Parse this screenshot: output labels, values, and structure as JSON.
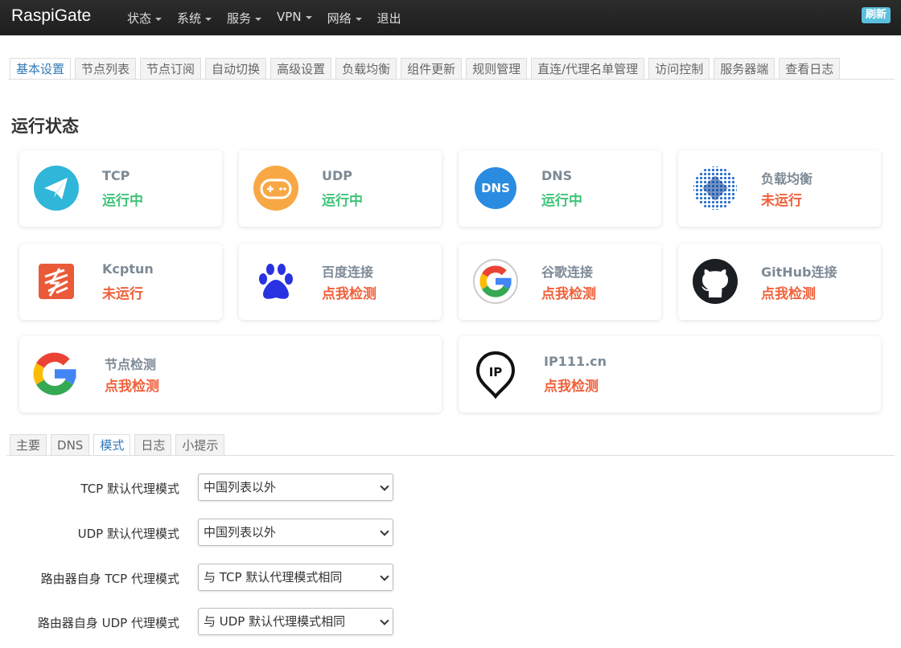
{
  "navbar": {
    "brand": "RaspiGate",
    "menu": [
      "状态",
      "系统",
      "服务",
      "VPN",
      "网络",
      "退出"
    ],
    "refresh": "刷新"
  },
  "tabs": [
    "基本设置",
    "节点列表",
    "节点订阅",
    "自动切换",
    "高级设置",
    "负载均衡",
    "组件更新",
    "规则管理",
    "直连/代理名单管理",
    "访问控制",
    "服务器端",
    "查看日志"
  ],
  "section_title": "运行状态",
  "cards": [
    {
      "name": "TCP",
      "status": "运行中"
    },
    {
      "name": "UDP",
      "status": "运行中"
    },
    {
      "name": "DNS",
      "status": "运行中",
      "icon_text": "DNS"
    },
    {
      "name": "负载均衡",
      "status": "未运行"
    },
    {
      "name": "Kcptun",
      "status": "未运行"
    },
    {
      "name": "百度连接",
      "status": "点我检测"
    },
    {
      "name": "谷歌连接",
      "status": "点我检测"
    },
    {
      "name": "GitHub连接",
      "status": "点我检测"
    },
    {
      "name": "节点检测",
      "status": "点我检测"
    },
    {
      "name": "IP111.cn",
      "status": "点我检测",
      "icon_text": "IP"
    }
  ],
  "subtabs": [
    "主要",
    "DNS",
    "模式",
    "日志",
    "小提示"
  ],
  "form": [
    {
      "label": "TCP 默认代理模式",
      "value": "中国列表以外"
    },
    {
      "label": "UDP 默认代理模式",
      "value": "中国列表以外"
    },
    {
      "label": "路由器自身 TCP 代理模式",
      "value": "与 TCP 默认代理模式相同"
    },
    {
      "label": "路由器自身 UDP 代理模式",
      "value": "与 UDP 默认代理模式相同"
    }
  ]
}
